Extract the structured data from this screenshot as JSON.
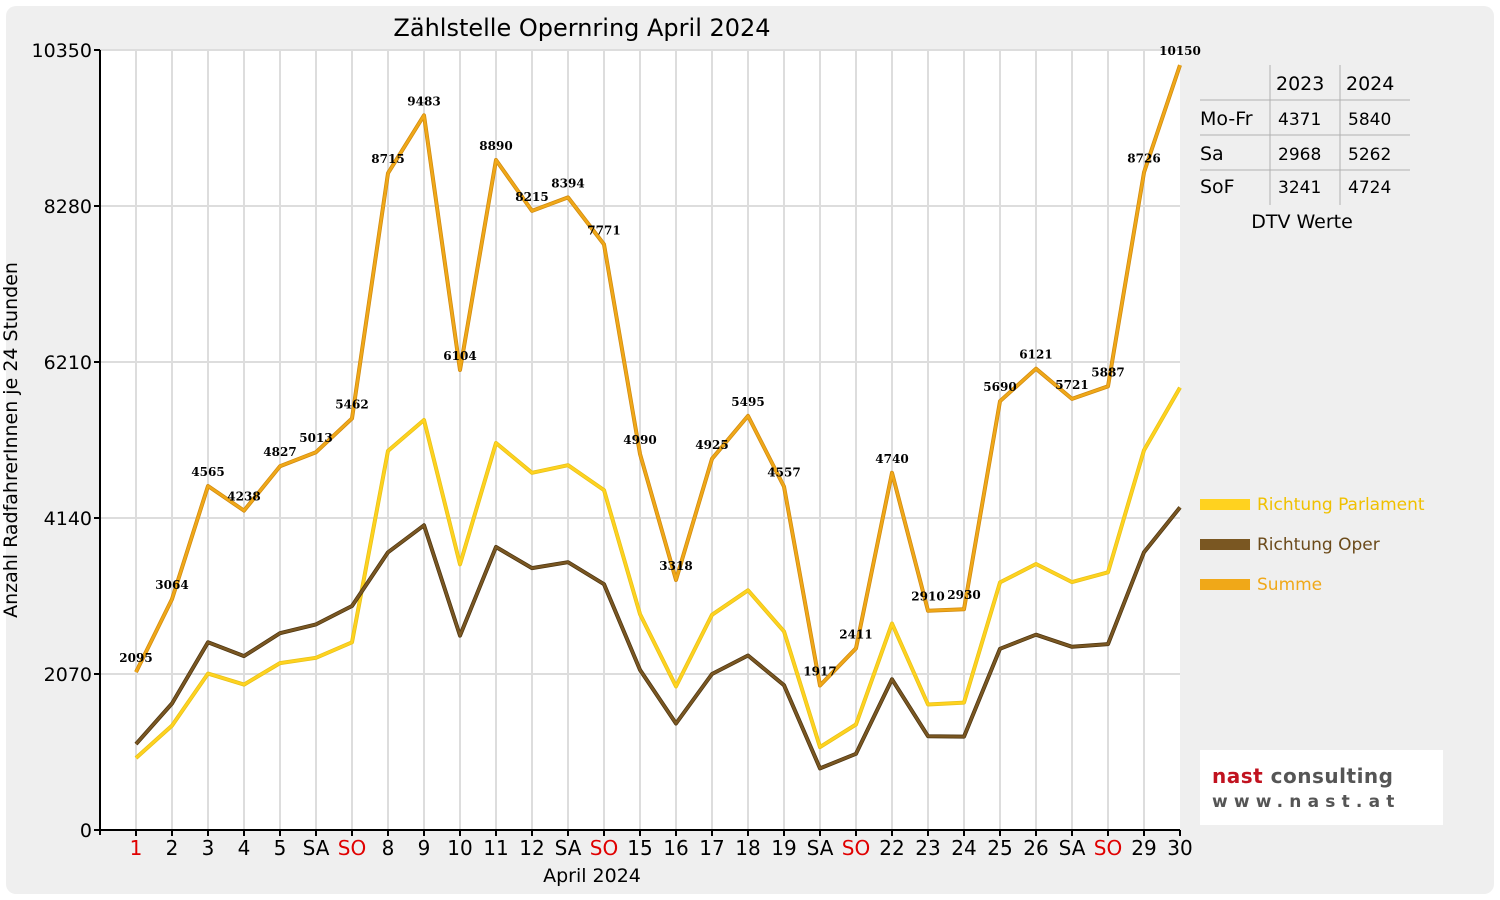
{
  "chart_data": {
    "type": "line",
    "title": "Zählstelle Opernring April 2024",
    "xlabel": "April 2024",
    "ylabel": "Anzahl RadfahrerInnen je 24 Stunden",
    "ylim": [
      0,
      10350
    ],
    "yticks": [
      "0",
      "2070",
      "4140",
      "6210",
      "8280",
      "10350"
    ],
    "grid": true,
    "legend_position": "right",
    "categories": [
      "1",
      "2",
      "3",
      "4",
      "5",
      "SA",
      "SO",
      "8",
      "9",
      "10",
      "11",
      "12",
      "SA",
      "SO",
      "15",
      "16",
      "17",
      "18",
      "19",
      "SA",
      "SO",
      "22",
      "23",
      "24",
      "25",
      "26",
      "SA",
      "SO",
      "29",
      "30"
    ],
    "category_colors": [
      "#e00000",
      "#000000",
      "#000000",
      "#000000",
      "#000000",
      "#000000",
      "#e00000",
      "#000000",
      "#000000",
      "#000000",
      "#000000",
      "#000000",
      "#000000",
      "#e00000",
      "#000000",
      "#000000",
      "#000000",
      "#000000",
      "#000000",
      "#000000",
      "#e00000",
      "#000000",
      "#000000",
      "#000000",
      "#000000",
      "#000000",
      "#000000",
      "#e00000",
      "#000000",
      "#000000"
    ],
    "series": [
      {
        "name": "Richtung Parlament",
        "color": "#ffd21f",
        "values": [
          955,
          1385,
          2075,
          1930,
          2215,
          2285,
          2490,
          5030,
          5440,
          3525,
          5135,
          4740,
          4840,
          4510,
          2865,
          1905,
          2855,
          3180,
          2635,
          1100,
          1400,
          2740,
          1665,
          1690,
          3285,
          3530,
          3290,
          3420,
          5040,
          5870
        ]
      },
      {
        "name": "Richtung Oper",
        "color": "#7a5722",
        "values": [
          1140,
          1679,
          2490,
          2308,
          2612,
          2728,
          2972,
          3685,
          4043,
          2579,
          3755,
          3475,
          3554,
          3261,
          2125,
          1413,
          2070,
          2315,
          1922,
          817,
          1011,
          2000,
          1245,
          1240,
          2405,
          2591,
          2431,
          2467,
          3686,
          4280
        ]
      },
      {
        "name": "Summe",
        "color": "#f0a818",
        "values": [
          2095,
          3064,
          4565,
          4238,
          4827,
          5013,
          5462,
          8715,
          9483,
          6104,
          8890,
          8215,
          8394,
          7771,
          4990,
          3318,
          4925,
          5495,
          4557,
          1917,
          2411,
          4740,
          2910,
          2930,
          5690,
          6121,
          5721,
          5887,
          8726,
          10150
        ],
        "labels": [
          "2095",
          "3064",
          "4565",
          "4238",
          "4827",
          "5013",
          "5462",
          "8715",
          "9483",
          "6104",
          "8890",
          "8215",
          "8394",
          "7771",
          "4990",
          "3318",
          "4925",
          "5495",
          "4557",
          "1917",
          "2411",
          "4740",
          "2910",
          "2930",
          "5690",
          "6121",
          "5721",
          "5887",
          "8726",
          "10150"
        ]
      }
    ]
  },
  "dtv_table": {
    "caption": "DTV Werte",
    "columns": [
      "",
      "2023",
      "2024"
    ],
    "rows": [
      {
        "label": "Mo-Fr",
        "v2023": "4371",
        "v2024": "5840"
      },
      {
        "label": "Sa",
        "v2023": "2968",
        "v2024": "5262"
      },
      {
        "label": "SoF",
        "v2023": "3241",
        "v2024": "4724"
      }
    ]
  },
  "logo": {
    "name_part1": "nast",
    "name_part2": "consulting",
    "url": "www.nast.at"
  }
}
